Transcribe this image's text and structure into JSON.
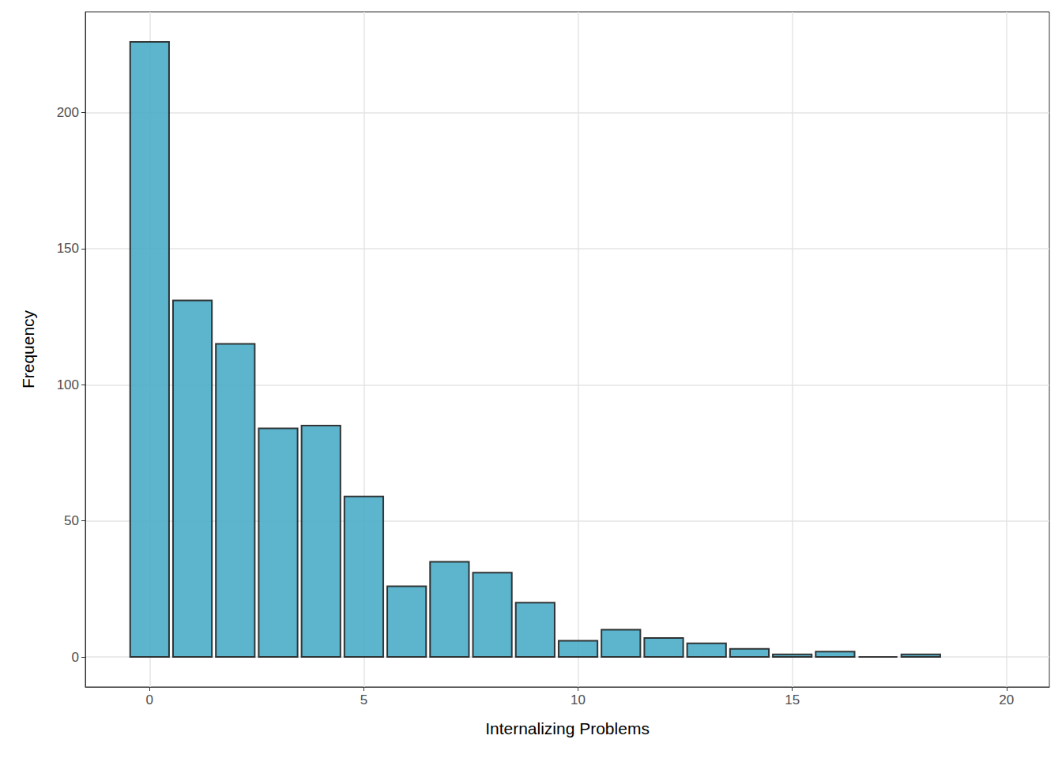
{
  "chart_data": {
    "type": "histogram",
    "x_label": "Internalizing Problems",
    "y_label": "Frequency",
    "bins": [
      -0.5,
      0.5,
      1.5,
      2.5,
      3.5,
      4.5,
      5.5,
      6.5,
      7.5,
      8.5,
      9.5,
      10.5,
      11.5,
      12.5,
      13.5,
      14.5,
      15.5,
      16.5,
      17.5,
      18.5
    ],
    "values": [
      226,
      131,
      115,
      84,
      85,
      59,
      26,
      35,
      31,
      20,
      6,
      10,
      7,
      5,
      3,
      1,
      2,
      0,
      1
    ],
    "color": "#4badc8",
    "xlim": [
      -1.5,
      21
    ],
    "xticks": [
      0,
      5,
      10,
      15,
      20
    ],
    "ylim": [
      -11,
      237
    ],
    "yticks": [
      0,
      50,
      100,
      150,
      200
    ],
    "grid": true
  }
}
